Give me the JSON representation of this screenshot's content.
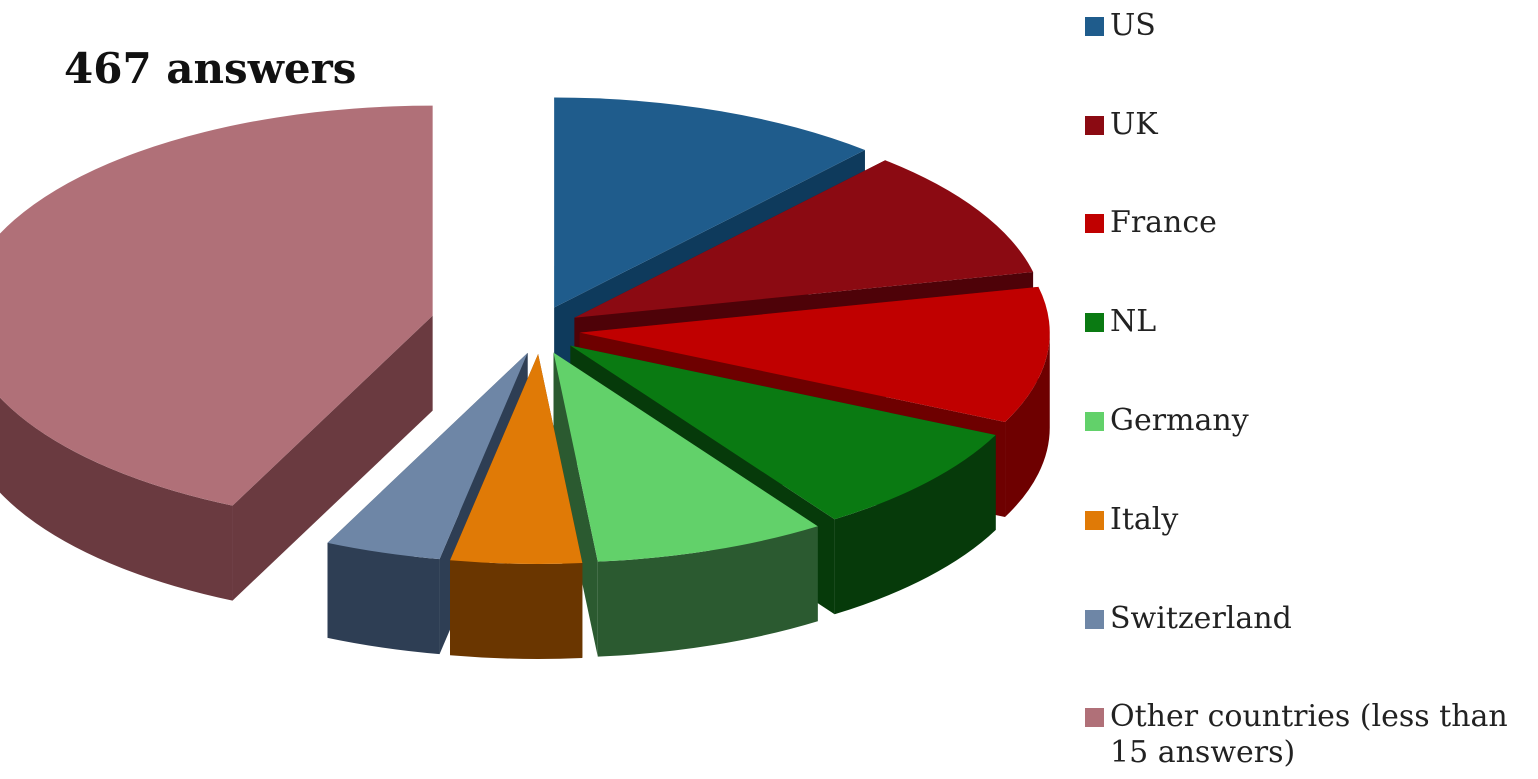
{
  "title": "467 answers",
  "chart_data": {
    "type": "pie",
    "title": "467 answers",
    "legend_position": "right",
    "categories": [
      "US",
      "UK",
      "France",
      "NL",
      "Germany",
      "Italy",
      "Switzerland",
      "Other countries (less than 15 answers)"
    ],
    "values": [
      11.5,
      10,
      10.5,
      8.5,
      8,
      4.5,
      4,
      43
    ],
    "colors": [
      "#1F5C8C",
      "#8B0A12",
      "#C00000",
      "#0A7A12",
      "#62D16A",
      "#E07A06",
      "#6E86A6",
      "#B07078"
    ],
    "side_colors": [
      "#0E3A5C",
      "#4E0208",
      "#6E0000",
      "#063A0A",
      "#2B5A30",
      "#6A3600",
      "#2E3E54",
      "#6A3A40"
    ]
  }
}
